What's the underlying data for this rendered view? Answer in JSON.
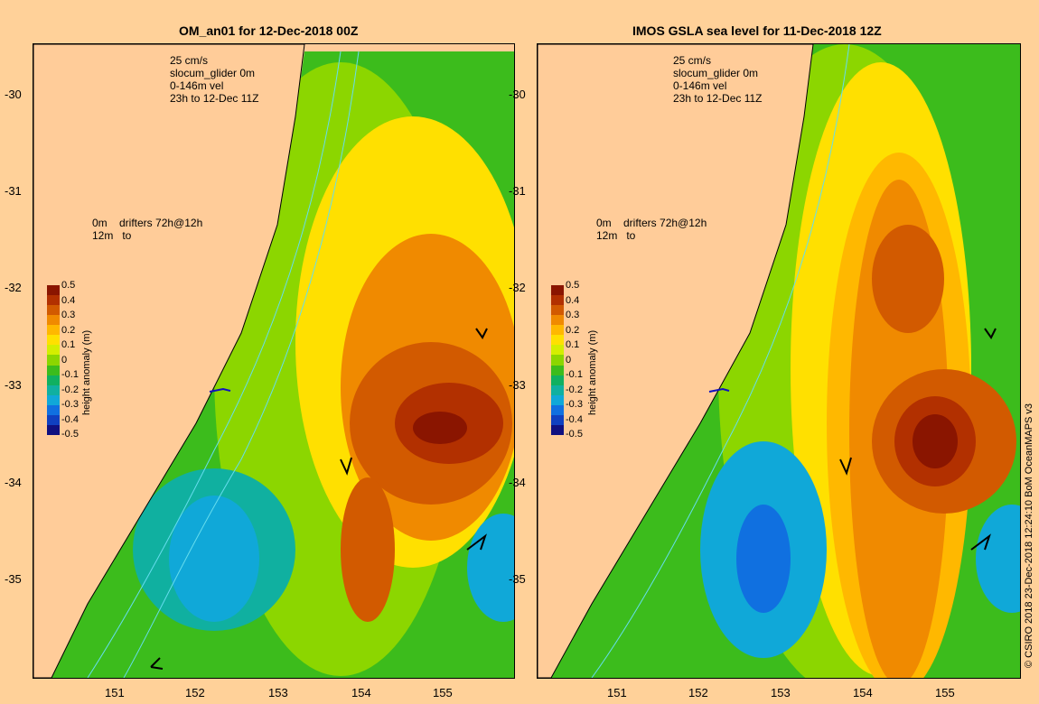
{
  "left_panel": {
    "title": "OM_an01 for 12-Dec-2018 00Z",
    "legend_vel": "25 cm/s\nslocum_glider 0m\n0-146m vel\n23h to 12-Dec 11Z",
    "legend_drifters": "0m    drifters 72h@12h\n12m   to"
  },
  "right_panel": {
    "title": "IMOS GSLA sea level  for 11-Dec-2018 12Z",
    "legend_vel": "25 cm/s\nslocum_glider 0m\n0-146m vel\n23h to 12-Dec 11Z",
    "legend_drifters": "0m    drifters 72h@12h\n12m   to"
  },
  "axes": {
    "lat_ticks": [
      "-30",
      "-31",
      "-32",
      "-33",
      "-34",
      "-35"
    ],
    "lon_ticks": [
      "151",
      "152",
      "153",
      "154",
      "155"
    ]
  },
  "colorbar": {
    "title": "height anomaly (m)",
    "labels": [
      "0.5",
      "0.4",
      "0.3",
      "0.2",
      "0.1",
      "0",
      "-0.1",
      "-0.2",
      "-0.3",
      "-0.4",
      "-0.5"
    ],
    "colors": [
      "#8a1500",
      "#b23000",
      "#d25a00",
      "#f08a00",
      "#ffb800",
      "#ffe000",
      "#d4ee00",
      "#8cd600",
      "#3cbc1c",
      "#10b060",
      "#10b0a0",
      "#10a8d8",
      "#1070e0",
      "#1040c0",
      "#101080"
    ]
  },
  "colors": {
    "land": "#ffcc99",
    "coast": "#000000",
    "contour": "#66ddee"
  },
  "credit": "© CSIRO 2018  23-Dec-2018 12:24:10 BoM OceanMAPS v3"
}
